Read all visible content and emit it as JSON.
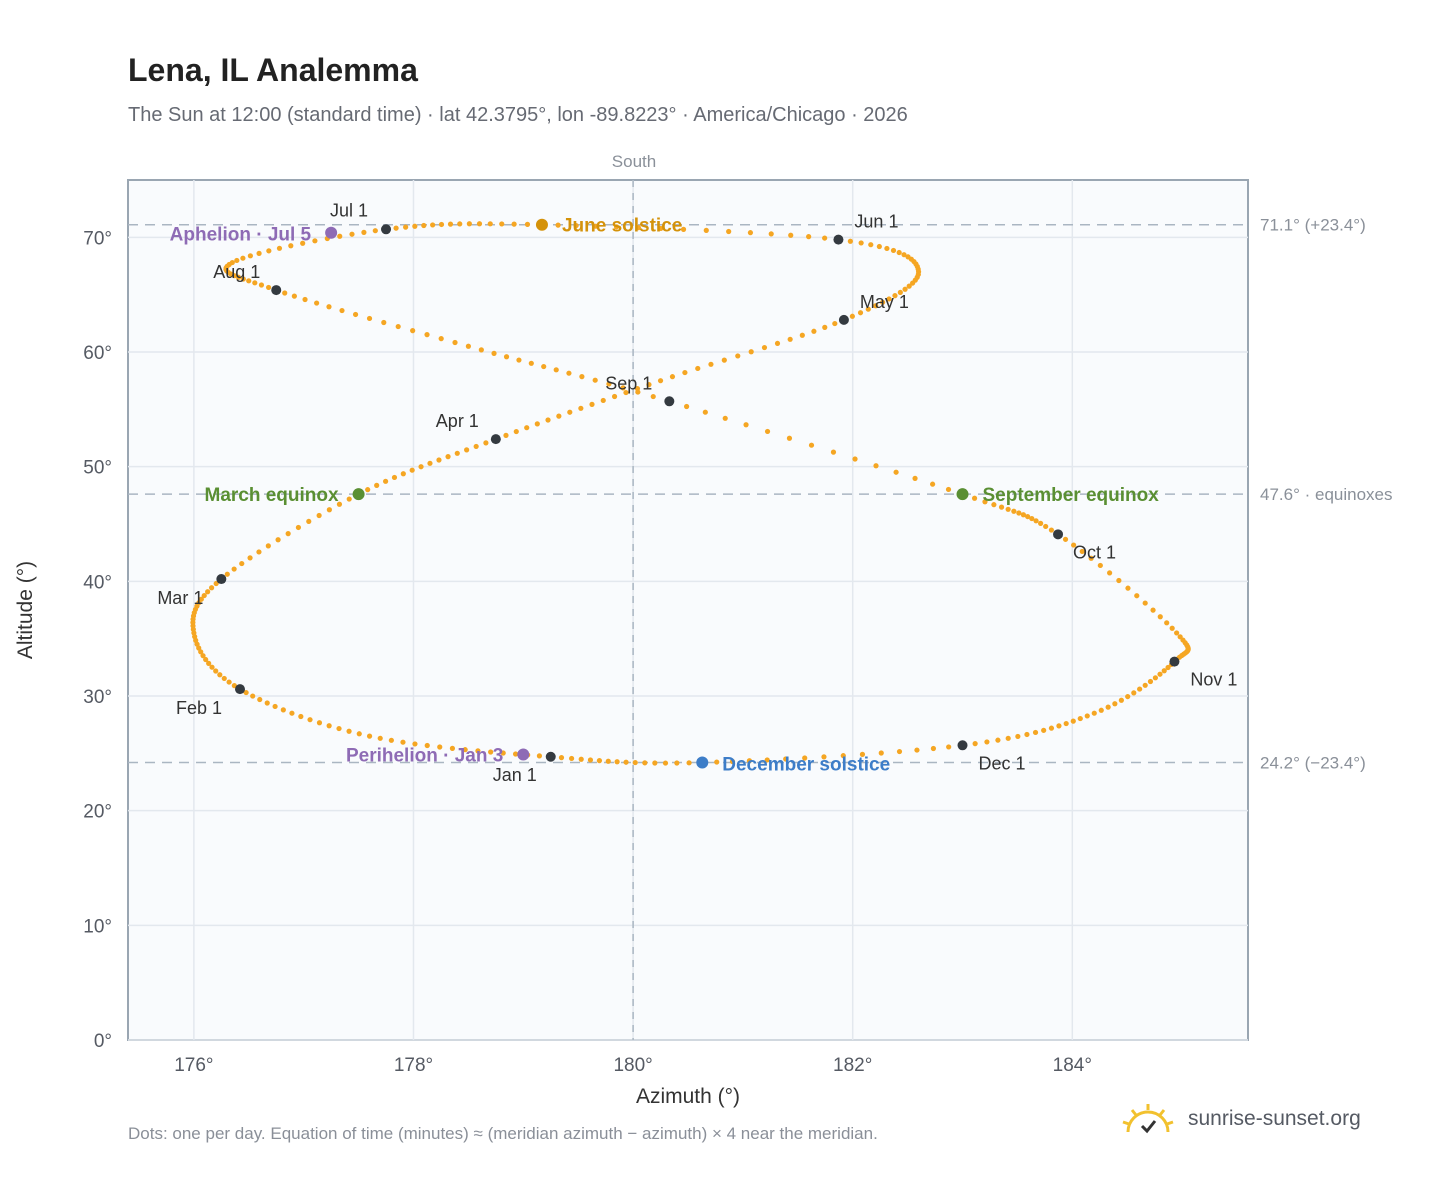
{
  "header": {
    "title": "Lena, IL Analemma",
    "subtitle": "The Sun at 12:00 (standard time) · lat 42.3795°, lon -89.8223° · America/Chicago · 2026"
  },
  "footer": {
    "note": "Dots: one per day. Equation of time (minutes) ≈ (meridian azimuth − azimuth) × 4 near the meridian.",
    "brand": "sunrise-sunset.org",
    "brand_icon": "sun-logo-icon"
  },
  "chart_data": {
    "type": "scatter",
    "title": "Lena, IL Analemma",
    "xlabel": "Azimuth (°)",
    "ylabel": "Altitude (°)",
    "xlim": [
      175.4,
      185.6
    ],
    "ylim": [
      0,
      75
    ],
    "x_ticks": [
      176,
      178,
      180,
      182,
      184
    ],
    "x_tick_labels": [
      "176°",
      "178°",
      "180°",
      "182°",
      "184°"
    ],
    "y_ticks": [
      0,
      10,
      20,
      30,
      40,
      50,
      60,
      70
    ],
    "y_tick_labels": [
      "0°",
      "10°",
      "20°",
      "30°",
      "40°",
      "50°",
      "60°",
      "70°"
    ],
    "grid": true,
    "meridian": {
      "azimuth": 180,
      "label": "South"
    },
    "colors": {
      "daily": "#f5a623",
      "month": "#343a40",
      "june": "#d4920a",
      "equinox": "#5a8f33",
      "december": "#3d7dc8",
      "apsis": "#8e6bb5",
      "reference": "#aab6c2"
    },
    "reference_lines": [
      {
        "y": 71.1,
        "label": "71.1° (+23.4°)"
      },
      {
        "y": 47.6,
        "label": "47.6° · equinoxes"
      },
      {
        "y": 24.2,
        "label": "24.2° (−23.4°)"
      }
    ],
    "month_markers": [
      {
        "label": "Jan 1",
        "x": 179.25,
        "y": 24.7
      },
      {
        "label": "Feb 1",
        "x": 176.42,
        "y": 30.6
      },
      {
        "label": "Mar 1",
        "x": 176.25,
        "y": 40.2
      },
      {
        "label": "Apr 1",
        "x": 178.75,
        "y": 52.4
      },
      {
        "label": "May 1",
        "x": 181.92,
        "y": 62.8
      },
      {
        "label": "Jun 1",
        "x": 181.87,
        "y": 69.8
      },
      {
        "label": "Jul 1",
        "x": 177.75,
        "y": 70.7
      },
      {
        "label": "Aug 1",
        "x": 176.75,
        "y": 65.4
      },
      {
        "label": "Sep 1",
        "x": 180.33,
        "y": 55.7
      },
      {
        "label": "Oct 1",
        "x": 183.87,
        "y": 44.1
      },
      {
        "label": "Nov 1",
        "x": 184.93,
        "y": 33.0
      },
      {
        "label": "Dec 1",
        "x": 183.0,
        "y": 25.7
      }
    ],
    "events": [
      {
        "label": "March equinox",
        "x": 177.5,
        "y": 47.6,
        "kind": "equinox"
      },
      {
        "label": "June solstice",
        "x": 179.17,
        "y": 71.1,
        "kind": "june"
      },
      {
        "label": "Aphelion · Jul 5",
        "x": 177.25,
        "y": 70.4,
        "kind": "apsis"
      },
      {
        "label": "September equinox",
        "x": 183.0,
        "y": 47.6,
        "kind": "equinox"
      },
      {
        "label": "December solstice",
        "x": 180.63,
        "y": 24.2,
        "kind": "december"
      },
      {
        "label": "Perihelion · Jan 3",
        "x": 179.0,
        "y": 24.9,
        "kind": "apsis"
      }
    ],
    "curve_keypoints": [
      [
        179.25,
        24.7
      ],
      [
        177.6,
        26.5
      ],
      [
        176.42,
        30.6
      ],
      [
        176.0,
        35.5
      ],
      [
        176.25,
        40.2
      ],
      [
        177.5,
        47.6
      ],
      [
        178.75,
        52.4
      ],
      [
        180.25,
        57.5
      ],
      [
        181.92,
        62.8
      ],
      [
        182.6,
        67.0
      ],
      [
        181.87,
        69.8
      ],
      [
        179.17,
        71.1
      ],
      [
        177.75,
        70.7
      ],
      [
        176.35,
        67.8
      ],
      [
        176.75,
        65.4
      ],
      [
        178.5,
        60.5
      ],
      [
        180.33,
        55.7
      ],
      [
        183.0,
        47.6
      ],
      [
        183.87,
        44.1
      ],
      [
        184.95,
        35.5
      ],
      [
        184.93,
        33.0
      ],
      [
        184.2,
        28.5
      ],
      [
        183.0,
        25.7
      ],
      [
        180.63,
        24.2
      ],
      [
        179.25,
        24.7
      ]
    ]
  }
}
